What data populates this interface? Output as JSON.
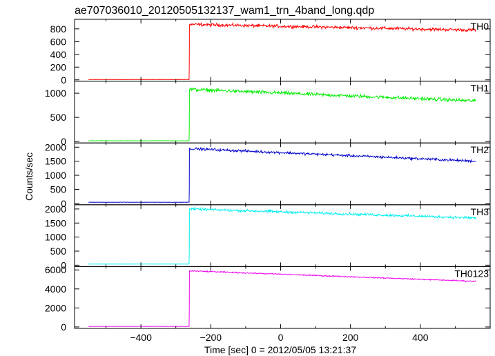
{
  "title": "ae707036010_20120505132137_wam1_trn_4band_long.qdp",
  "ylabel": "Counts/sec",
  "xlabel": "Time [sec] 0 = 2012/05/05 13:21:37",
  "chart_data": {
    "type": "line",
    "title": "ae707036010_20120505132137_wam1_trn_4band_long.qdp",
    "xlabel": "Time [sec] 0 = 2012/05/05 13:21:37",
    "ylabel": "Counts/sec",
    "xlim": [
      -590,
      600
    ],
    "x_ticks": [
      -400,
      -200,
      0,
      200,
      400
    ],
    "x_tick_labels": [
      "−400",
      "−200",
      "0",
      "200",
      "400"
    ],
    "grid": false,
    "panels": [
      {
        "label": "TH0",
        "color": "#ff0000",
        "ylim": [
          -20,
          950
        ],
        "y_ticks": [
          0,
          200,
          400,
          600,
          800
        ],
        "y_tick_labels": [
          "0",
          "200",
          "400",
          "600",
          "800"
        ],
        "x_start": -550,
        "x_end": 560,
        "t_trigger": -262,
        "pre_level": 5,
        "spike_value": 280,
        "post_start_level": 870,
        "post_end_level": 780,
        "noise": 30
      },
      {
        "label": "TH1",
        "color": "#00ee00",
        "ylim": [
          -30,
          1250
        ],
        "y_ticks": [
          0,
          500,
          1000
        ],
        "y_tick_labels": [
          "0",
          "500",
          "1000"
        ],
        "x_start": -550,
        "x_end": 560,
        "t_trigger": -262,
        "pre_level": 15,
        "spike_value": 300,
        "post_start_level": 1080,
        "post_end_level": 840,
        "noise": 45
      },
      {
        "label": "TH2",
        "color": "#0000cc",
        "ylim": [
          -50,
          2150
        ],
        "y_ticks": [
          0,
          500,
          1000,
          1500,
          2000
        ],
        "y_tick_labels": [
          "0",
          "500",
          "1000",
          "1500",
          "2000"
        ],
        "x_start": -550,
        "x_end": 560,
        "t_trigger": -262,
        "pre_level": 40,
        "spike_value": 500,
        "post_start_level": 1950,
        "post_end_level": 1500,
        "noise": 55
      },
      {
        "label": "TH3",
        "color": "#00eeee",
        "ylim": [
          -50,
          2150
        ],
        "y_ticks": [
          0,
          500,
          1000,
          1500,
          2000
        ],
        "y_tick_labels": [
          "0",
          "500",
          "1000",
          "1500",
          "2000"
        ],
        "x_start": -550,
        "x_end": 560,
        "t_trigger": -262,
        "pre_level": 40,
        "spike_value": 600,
        "post_start_level": 2000,
        "post_end_level": 1680,
        "noise": 55
      },
      {
        "label": "TH0123",
        "color": "#ee00ee",
        "ylim": [
          -150,
          6350
        ],
        "y_ticks": [
          0,
          2000,
          4000,
          6000
        ],
        "y_tick_labels": [
          "0",
          "2000",
          "4000",
          "6000"
        ],
        "x_start": -550,
        "x_end": 560,
        "t_trigger": -262,
        "pre_level": 60,
        "spike_value": 1700,
        "post_start_level": 5900,
        "post_end_level": 4800,
        "noise": 75
      }
    ]
  }
}
